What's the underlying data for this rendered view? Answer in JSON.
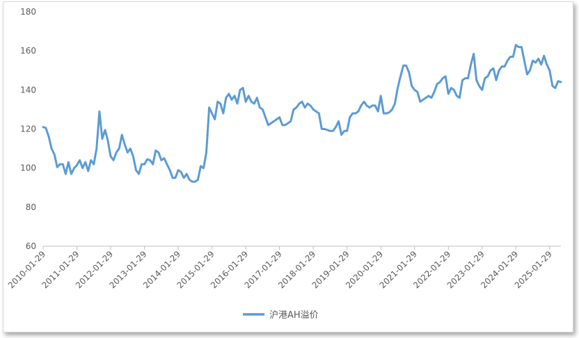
{
  "chart_data": {
    "type": "line",
    "title": "",
    "xlabel": "",
    "ylabel": "",
    "ylim": [
      60,
      180
    ],
    "yticks": [
      "60",
      "80",
      "100",
      "120",
      "140",
      "160",
      "180"
    ],
    "xtick_labels": [
      "2010-01-29",
      "2011-01-29",
      "2012-01-29",
      "2013-01-29",
      "2014-01-29",
      "2015-01-29",
      "2016-01-29",
      "2017-01-29",
      "2018-01-29",
      "2019-01-29",
      "2020-01-29",
      "2021-01-29",
      "2022-01-29",
      "2023-01-29",
      "2024-01-29",
      "2025-01-29"
    ],
    "grid": false,
    "legend_position": "bottom",
    "series_color": "#5b9bd5",
    "series": [
      {
        "name": "沪港AH溢价",
        "values": [
          121.0,
          120.5,
          116.0,
          110.0,
          107.0,
          100.5,
          102.0,
          102.0,
          97.0,
          103.0,
          97.0,
          100.0,
          101.5,
          104.0,
          100.0,
          103.0,
          98.5,
          104.0,
          102.0,
          110.0,
          129.0,
          115.0,
          119.5,
          114.0,
          106.0,
          104.0,
          108.0,
          110.0,
          117.0,
          112.0,
          108.0,
          110.0,
          106.0,
          99.0,
          97.0,
          102.0,
          102.0,
          104.5,
          104.0,
          102.0,
          109.0,
          108.0,
          104.0,
          105.0,
          102.0,
          99.0,
          95.0,
          95.0,
          99.0,
          98.0,
          95.0,
          97.0,
          94.0,
          93.0,
          93.0,
          94.0,
          101.0,
          100.0,
          108.0,
          131.0,
          128.0,
          125.0,
          134.0,
          133.0,
          128.0,
          136.0,
          138.0,
          135.0,
          137.0,
          133.0,
          140.0,
          141.0,
          134.0,
          137.0,
          134.0,
          133.0,
          136.0,
          131.0,
          130.0,
          126.0,
          122.0,
          123.0,
          124.0,
          125.0,
          126.0,
          122.0,
          122.0,
          123.0,
          124.0,
          130.0,
          131.0,
          133.0,
          134.0,
          131.0,
          133.0,
          132.0,
          130.0,
          129.0,
          128.0,
          120.0,
          120.0,
          119.5,
          119.0,
          119.0,
          121.0,
          124.0,
          117.0,
          119.0,
          119.0,
          126.0,
          128.0,
          128.0,
          129.0,
          132.0,
          134.0,
          132.0,
          131.0,
          132.0,
          132.0,
          129.0,
          137.0,
          128.0,
          128.0,
          128.5,
          130.0,
          133.0,
          141.0,
          147.0,
          152.5,
          152.5,
          149.0,
          142.0,
          140.0,
          139.0,
          134.0,
          135.0,
          136.0,
          137.0,
          136.0,
          139.0,
          143.0,
          144.0,
          146.0,
          147.0,
          138.0,
          141.0,
          140.0,
          137.0,
          136.0,
          145.0,
          146.0,
          146.0,
          153.0,
          158.5,
          145.0,
          142.0,
          140.0,
          146.0,
          147.0,
          150.0,
          151.0,
          145.0,
          150.0,
          152.0,
          152.0,
          155.0,
          157.0,
          157.0,
          163.0,
          162.0,
          162.0,
          155.0,
          148.0,
          150.0,
          155.0,
          154.0,
          156.0,
          153.0,
          157.5,
          153.0,
          150.0,
          142.0,
          141.0,
          144.5,
          144.0
        ]
      }
    ]
  }
}
